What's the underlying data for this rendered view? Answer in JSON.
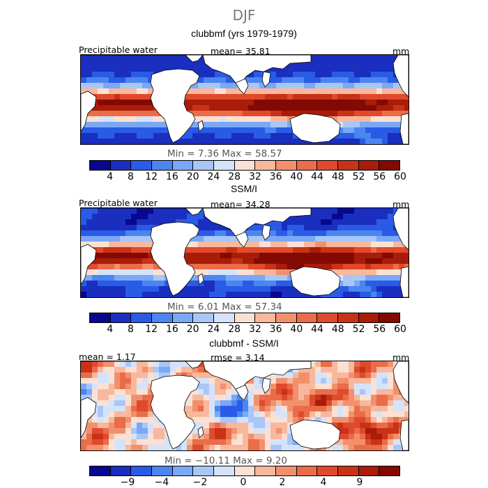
{
  "figure": {
    "season": "DJF"
  },
  "colors": {
    "ramp": [
      "#08088e",
      "#1a2fbf",
      "#2a5be6",
      "#4b86f0",
      "#7aa8f6",
      "#a8c7f7",
      "#d5e3fa",
      "#fbe1d4",
      "#f8b89d",
      "#f2906d",
      "#ea6c49",
      "#e04a2c",
      "#c93216",
      "#a81c0a",
      "#820a02"
    ],
    "land": "#ffffff",
    "coast": "#000000"
  },
  "panels": [
    {
      "title": "clubbmf (yrs 1979-1979)",
      "variable": "Precipitable water",
      "mean_text": "mean= 35.81",
      "units": "mm",
      "min_max_text": "Min =   7.36 Max =  58.57",
      "colorbar_ticks": [
        "4",
        "8",
        "12",
        "16",
        "20",
        "24",
        "28",
        "32",
        "36",
        "40",
        "44",
        "48",
        "52",
        "56",
        "60"
      ],
      "field_type": "pw"
    },
    {
      "title": "SSM/I",
      "variable": "Precipitable water",
      "mean_text": "mean= 34.28",
      "units": "mm",
      "min_max_text": "Min =   6.01 Max =  57.34",
      "colorbar_ticks": [
        "4",
        "8",
        "12",
        "16",
        "20",
        "24",
        "28",
        "32",
        "36",
        "40",
        "44",
        "48",
        "52",
        "56",
        "60"
      ],
      "field_type": "pw"
    },
    {
      "title": "clubbmf - SSM/I",
      "left_text": "mean =   1.17",
      "rmse_text": "rmse =   3.14",
      "units": "mm",
      "min_max_text": "Min = −10.11 Max =   9.20",
      "colorbar_ticks": [
        "−9",
        "−4",
        "−2",
        "0",
        "2",
        "4",
        "9"
      ],
      "field_type": "diff"
    }
  ]
}
